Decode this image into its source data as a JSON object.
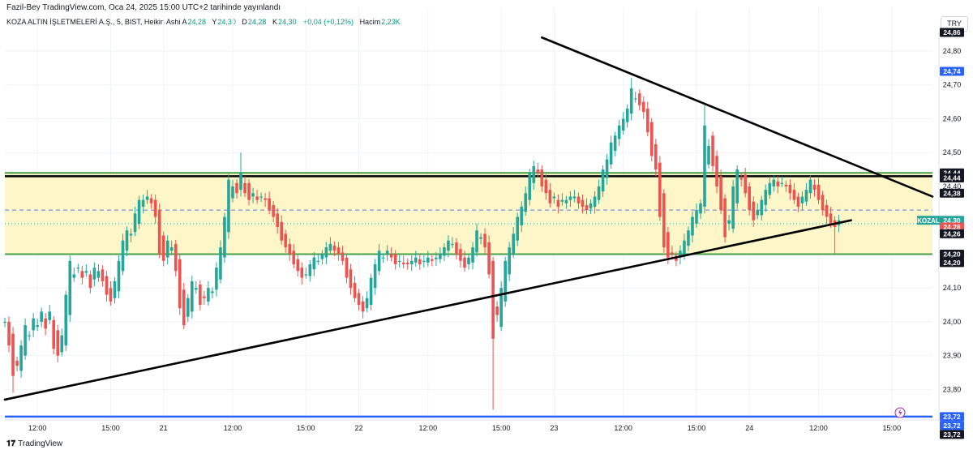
{
  "header": {
    "publish_line": "Fazil-Bey TradingView.com, Oca 24, 2025 15:00 UTC+2 tarihinde yayınlandı",
    "symbol_line": "KOZA ALTIN İŞLETMELERİ A.Ş., 5, BIST, Heikin Ashi",
    "ohlc": [
      {
        "label": "A",
        "value": "24,28"
      },
      {
        "label": "Y",
        "value": "24,30"
      },
      {
        "label": "D",
        "value": "24,28"
      },
      {
        "label": "K",
        "value": "24,30"
      },
      {
        "label": "",
        "value": "+0,04 (+0,12%)"
      },
      {
        "label": "Hacim",
        "value": "2,23K"
      }
    ],
    "currency": "TRY"
  },
  "footer": {
    "brand": "TradingView",
    "brand_icon": "tradingview-logo-icon"
  },
  "colors": {
    "bull": "#26a69a",
    "bear": "#ef5350",
    "zone_fill": "#fdf6c8",
    "green_line": "#43a047",
    "black_line": "#000000",
    "blue_line": "#2962ff",
    "grid": "#f0f3fa"
  },
  "chart_data": {
    "type": "candlestick",
    "style": "Heikin Ashi",
    "symbol": "KOZAL",
    "interval": "5",
    "y_axis": {
      "range": [
        23.71,
        24.855
      ],
      "ticks": [
        "23,80",
        "23,90",
        "24,00",
        "24,10",
        "24,20",
        "24,30",
        "24,40",
        "24,50",
        "24,60",
        "24,70",
        "24,80"
      ],
      "side": "right"
    },
    "x_axis": {
      "range": [
        0,
        114
      ],
      "ticks": [
        {
          "t": 4,
          "label": "12:00"
        },
        {
          "t": 13,
          "label": "15:00"
        },
        {
          "t": 19.5,
          "label": "21"
        },
        {
          "t": 28,
          "label": "12:00"
        },
        {
          "t": 37,
          "label": "15:00"
        },
        {
          "t": 43.5,
          "label": "22"
        },
        {
          "t": 52,
          "label": "12:00"
        },
        {
          "t": 61,
          "label": "15:00"
        },
        {
          "t": 67.5,
          "label": "23"
        },
        {
          "t": 76,
          "label": "12:00"
        },
        {
          "t": 85,
          "label": "15:00"
        },
        {
          "t": 91.5,
          "label": "24"
        },
        {
          "t": 100,
          "label": "12:00"
        },
        {
          "t": 109,
          "label": "15:00"
        }
      ]
    },
    "grid": true,
    "candles": [
      {
        "t": 0,
        "v": 24.0
      },
      {
        "t": 0.5,
        "v": 23.93
      },
      {
        "t": 1,
        "v": 23.84
      },
      {
        "t": 1.5,
        "v": 23.87
      },
      {
        "t": 2,
        "v": 23.93
      },
      {
        "t": 2.5,
        "v": 23.99
      },
      {
        "t": 3,
        "v": 23.96
      },
      {
        "t": 3.5,
        "v": 24.01
      },
      {
        "t": 4,
        "v": 23.99
      },
      {
        "t": 4.5,
        "v": 24.03
      },
      {
        "t": 5,
        "v": 23.98
      },
      {
        "t": 5.5,
        "v": 24.03
      },
      {
        "t": 6,
        "v": 23.92
      },
      {
        "t": 6.5,
        "v": 23.9
      },
      {
        "t": 7,
        "v": 23.96
      },
      {
        "t": 7.5,
        "v": 24.08
      },
      {
        "t": 8,
        "v": 24.18
      },
      {
        "t": 8.5,
        "v": 24.14
      },
      {
        "t": 9,
        "v": 24.16
      },
      {
        "t": 9.5,
        "v": 24.13
      },
      {
        "t": 10,
        "v": 24.15
      },
      {
        "t": 10.5,
        "v": 24.1
      },
      {
        "t": 11,
        "v": 24.16
      },
      {
        "t": 11.5,
        "v": 24.15
      },
      {
        "t": 12,
        "v": 24.12
      },
      {
        "t": 12.5,
        "v": 24.08
      },
      {
        "t": 13,
        "v": 24.06
      },
      {
        "t": 13.5,
        "v": 24.12
      },
      {
        "t": 14,
        "v": 24.18
      },
      {
        "t": 14.5,
        "v": 24.24
      },
      {
        "t": 15,
        "v": 24.27
      },
      {
        "t": 15.5,
        "v": 24.26
      },
      {
        "t": 16,
        "v": 24.32
      },
      {
        "t": 16.5,
        "v": 24.36
      },
      {
        "t": 17,
        "v": 24.36
      },
      {
        "t": 17.5,
        "v": 24.37
      },
      {
        "t": 18,
        "v": 24.35
      },
      {
        "t": 18.5,
        "v": 24.31
      },
      {
        "t": 19,
        "v": 24.2
      },
      {
        "t": 19.5,
        "v": 24.18
      },
      {
        "t": 20,
        "v": 24.24
      },
      {
        "t": 20.5,
        "v": 24.22
      },
      {
        "t": 21,
        "v": 24.15
      },
      {
        "t": 21.5,
        "v": 24.04
      },
      {
        "t": 22,
        "v": 23.99
      },
      {
        "t": 22.5,
        "v": 24.07
      },
      {
        "t": 23,
        "v": 24.12
      },
      {
        "t": 23.5,
        "v": 24.1
      },
      {
        "t": 24,
        "v": 24.05
      },
      {
        "t": 24.5,
        "v": 24.07
      },
      {
        "t": 25,
        "v": 24.1
      },
      {
        "t": 25.5,
        "v": 24.09
      },
      {
        "t": 26,
        "v": 24.16
      },
      {
        "t": 26.5,
        "v": 24.22
      },
      {
        "t": 27,
        "v": 24.31
      },
      {
        "t": 27.5,
        "v": 24.42
      },
      {
        "t": 28,
        "v": 24.4
      },
      {
        "t": 28.5,
        "v": 24.38
      },
      {
        "t": 29,
        "v": 24.44
      },
      {
        "t": 29.5,
        "v": 24.38
      },
      {
        "t": 30,
        "v": 24.36
      },
      {
        "t": 30.5,
        "v": 24.38
      },
      {
        "t": 31,
        "v": 24.36
      },
      {
        "t": 31.5,
        "v": 24.37
      },
      {
        "t": 32,
        "v": 24.36
      },
      {
        "t": 32.5,
        "v": 24.33
      },
      {
        "t": 33,
        "v": 24.31
      },
      {
        "t": 33.5,
        "v": 24.28
      },
      {
        "t": 34,
        "v": 24.24
      },
      {
        "t": 34.5,
        "v": 24.22
      },
      {
        "t": 35,
        "v": 24.2
      },
      {
        "t": 35.5,
        "v": 24.17
      },
      {
        "t": 36,
        "v": 24.15
      },
      {
        "t": 36.5,
        "v": 24.13
      },
      {
        "t": 37,
        "v": 24.14
      },
      {
        "t": 37.5,
        "v": 24.17
      },
      {
        "t": 38,
        "v": 24.19
      },
      {
        "t": 38.5,
        "v": 24.18
      },
      {
        "t": 39,
        "v": 24.2
      },
      {
        "t": 39.5,
        "v": 24.22
      },
      {
        "t": 40,
        "v": 24.23
      },
      {
        "t": 40.5,
        "v": 24.21
      },
      {
        "t": 41,
        "v": 24.2
      },
      {
        "t": 41.5,
        "v": 24.18
      },
      {
        "t": 42,
        "v": 24.13
      },
      {
        "t": 42.5,
        "v": 24.1
      },
      {
        "t": 43,
        "v": 24.07
      },
      {
        "t": 43.5,
        "v": 24.05
      },
      {
        "t": 44,
        "v": 24.03
      },
      {
        "t": 44.5,
        "v": 24.07
      },
      {
        "t": 45,
        "v": 24.13
      },
      {
        "t": 45.5,
        "v": 24.17
      },
      {
        "t": 46,
        "v": 24.21
      },
      {
        "t": 46.5,
        "v": 24.19
      },
      {
        "t": 47,
        "v": 24.21
      },
      {
        "t": 47.5,
        "v": 24.19
      },
      {
        "t": 48,
        "v": 24.17
      },
      {
        "t": 48.5,
        "v": 24.18
      },
      {
        "t": 49,
        "v": 24.17
      },
      {
        "t": 49.5,
        "v": 24.17
      },
      {
        "t": 50,
        "v": 24.18
      },
      {
        "t": 50.5,
        "v": 24.19
      },
      {
        "t": 51,
        "v": 24.17
      },
      {
        "t": 51.5,
        "v": 24.18
      },
      {
        "t": 52,
        "v": 24.19
      },
      {
        "t": 52.5,
        "v": 24.18
      },
      {
        "t": 53,
        "v": 24.19
      },
      {
        "t": 53.5,
        "v": 24.2
      },
      {
        "t": 54,
        "v": 24.22
      },
      {
        "t": 54.5,
        "v": 24.24
      },
      {
        "t": 55,
        "v": 24.23
      },
      {
        "t": 55.5,
        "v": 24.2
      },
      {
        "t": 56,
        "v": 24.18
      },
      {
        "t": 56.5,
        "v": 24.16
      },
      {
        "t": 57,
        "v": 24.19
      },
      {
        "t": 57.5,
        "v": 24.22
      },
      {
        "t": 58,
        "v": 24.27
      },
      {
        "t": 58.5,
        "v": 24.25
      },
      {
        "t": 59,
        "v": 24.22
      },
      {
        "t": 59.5,
        "v": 24.14
      },
      {
        "t": 60,
        "v": 23.95
      },
      {
        "t": 60.5,
        "v": 24.02
      },
      {
        "t": 61,
        "v": 24.1
      },
      {
        "t": 61.5,
        "v": 24.18
      },
      {
        "t": 62,
        "v": 24.22
      },
      {
        "t": 62.5,
        "v": 24.26
      },
      {
        "t": 63,
        "v": 24.31
      },
      {
        "t": 63.5,
        "v": 24.34
      },
      {
        "t": 64,
        "v": 24.38
      },
      {
        "t": 64.5,
        "v": 24.44
      },
      {
        "t": 65,
        "v": 24.46
      },
      {
        "t": 65.5,
        "v": 24.44
      },
      {
        "t": 66,
        "v": 24.4
      },
      {
        "t": 66.5,
        "v": 24.38
      },
      {
        "t": 67,
        "v": 24.35
      },
      {
        "t": 67.5,
        "v": 24.37
      },
      {
        "t": 68,
        "v": 24.34
      },
      {
        "t": 68.5,
        "v": 24.36
      },
      {
        "t": 69,
        "v": 24.36
      },
      {
        "t": 69.5,
        "v": 24.37
      },
      {
        "t": 70,
        "v": 24.37
      },
      {
        "t": 70.5,
        "v": 24.35
      },
      {
        "t": 71,
        "v": 24.34
      },
      {
        "t": 71.5,
        "v": 24.33
      },
      {
        "t": 72,
        "v": 24.35
      },
      {
        "t": 72.5,
        "v": 24.37
      },
      {
        "t": 73,
        "v": 24.4
      },
      {
        "t": 73.5,
        "v": 24.45
      },
      {
        "t": 74,
        "v": 24.48
      },
      {
        "t": 74.5,
        "v": 24.53
      },
      {
        "t": 75,
        "v": 24.55
      },
      {
        "t": 75.5,
        "v": 24.58
      },
      {
        "t": 76,
        "v": 24.6
      },
      {
        "t": 76.5,
        "v": 24.63
      },
      {
        "t": 77,
        "v": 24.69
      },
      {
        "t": 77.5,
        "v": 24.66
      },
      {
        "t": 78,
        "v": 24.64
      },
      {
        "t": 78.5,
        "v": 24.62
      },
      {
        "t": 79,
        "v": 24.56
      },
      {
        "t": 79.5,
        "v": 24.49
      },
      {
        "t": 80,
        "v": 24.45
      },
      {
        "t": 80.5,
        "v": 24.31
      },
      {
        "t": 81,
        "v": 24.22
      },
      {
        "t": 81.5,
        "v": 24.19
      },
      {
        "t": 82,
        "v": 24.2
      },
      {
        "t": 82.5,
        "v": 24.18
      },
      {
        "t": 83,
        "v": 24.21
      },
      {
        "t": 83.5,
        "v": 24.24
      },
      {
        "t": 84,
        "v": 24.27
      },
      {
        "t": 84.5,
        "v": 24.31
      },
      {
        "t": 85,
        "v": 24.33
      },
      {
        "t": 85.5,
        "v": 24.35
      },
      {
        "t": 86,
        "v": 24.58
      },
      {
        "t": 86.5,
        "v": 24.52
      },
      {
        "t": 87,
        "v": 24.46
      },
      {
        "t": 87.5,
        "v": 24.4
      },
      {
        "t": 88,
        "v": 24.33
      },
      {
        "t": 88.5,
        "v": 24.25
      },
      {
        "t": 89,
        "v": 24.3
      },
      {
        "t": 89.5,
        "v": 24.4
      },
      {
        "t": 90,
        "v": 24.45
      },
      {
        "t": 90.5,
        "v": 24.42
      },
      {
        "t": 91,
        "v": 24.38
      },
      {
        "t": 91.5,
        "v": 24.33
      },
      {
        "t": 92,
        "v": 24.3
      },
      {
        "t": 92.5,
        "v": 24.33
      },
      {
        "t": 93,
        "v": 24.36
      },
      {
        "t": 93.5,
        "v": 24.39
      },
      {
        "t": 94,
        "v": 24.41
      },
      {
        "t": 94.5,
        "v": 24.42
      },
      {
        "t": 95,
        "v": 24.4
      },
      {
        "t": 95.5,
        "v": 24.41
      },
      {
        "t": 96,
        "v": 24.4
      },
      {
        "t": 96.5,
        "v": 24.38
      },
      {
        "t": 97,
        "v": 24.36
      },
      {
        "t": 97.5,
        "v": 24.34
      },
      {
        "t": 98,
        "v": 24.37
      },
      {
        "t": 98.5,
        "v": 24.39
      },
      {
        "t": 99,
        "v": 24.42
      },
      {
        "t": 99.5,
        "v": 24.39
      },
      {
        "t": 100,
        "v": 24.36
      },
      {
        "t": 100.5,
        "v": 24.33
      },
      {
        "t": 101,
        "v": 24.31
      },
      {
        "t": 101.5,
        "v": 24.29
      },
      {
        "t": 102,
        "v": 24.28
      },
      {
        "t": 102.5,
        "v": 24.3
      }
    ],
    "candle_extremes": [
      {
        "t": 1,
        "low": 23.79
      },
      {
        "t": 29,
        "high": 24.5
      },
      {
        "t": 60,
        "low": 23.74
      },
      {
        "t": 77,
        "high": 24.72
      },
      {
        "t": 86,
        "high": 24.64
      },
      {
        "t": 102,
        "low": 24.2
      }
    ],
    "horizontal_lines": [
      {
        "price": 24.44,
        "color": "green",
        "label": "24,44"
      },
      {
        "price": 24.43,
        "color": "black",
        "label": "24,44"
      },
      {
        "price": 24.2,
        "color": "green",
        "label": "24,20"
      },
      {
        "price": 23.72,
        "color": "blue",
        "label": "23,72"
      }
    ],
    "zone": {
      "from": 24.2,
      "to": 24.44
    },
    "trendlines": [
      {
        "name": "resistance",
        "from": [
          66,
          24.84
        ],
        "to": [
          114,
          24.37
        ]
      },
      {
        "name": "support",
        "from": [
          0,
          23.77
        ],
        "to": [
          104,
          24.3
        ]
      }
    ],
    "dashed_levels": [
      24.33,
      24.29
    ],
    "price_tags": [
      {
        "price": 24.855,
        "label": "24,86",
        "bg": "#131722",
        "fg": "#ffffff"
      },
      {
        "price": 24.74,
        "label": "24,74",
        "bg": "#2962ff",
        "fg": "#ffffff"
      },
      {
        "price": 24.44,
        "label": "24,44",
        "bg": "#131722",
        "fg": "#ffffff"
      },
      {
        "price": 24.425,
        "label": "24,44",
        "bg": "#131722",
        "fg": "#ffffff"
      },
      {
        "price": 24.38,
        "label": "24,38",
        "bg": "#131722",
        "fg": "#ffffff"
      },
      {
        "price": 24.3,
        "label": "24,30",
        "bg": "#26a69a",
        "fg": "#ffffff",
        "symbol": "KOZAL"
      },
      {
        "price": 24.28,
        "label": "24,28",
        "bg": "#ef5350",
        "fg": "#ffffff"
      },
      {
        "price": 24.26,
        "label": "24,26",
        "bg": "#131722",
        "fg": "#ffffff"
      },
      {
        "price": 24.2,
        "label": "24,20",
        "bg": "#131722",
        "fg": "#ffffff"
      },
      {
        "price": 24.175,
        "label": "24,20",
        "bg": "#131722",
        "fg": "#ffffff"
      },
      {
        "price": 23.72,
        "label": "23,72",
        "bg": "#2962ff",
        "fg": "#ffffff"
      },
      {
        "price": 23.72,
        "label": "23,72",
        "bg": "#2962ff",
        "fg": "#ffffff"
      },
      {
        "price": 23.72,
        "label": "23,72",
        "bg": "#131722",
        "fg": "#ffffff"
      }
    ]
  }
}
